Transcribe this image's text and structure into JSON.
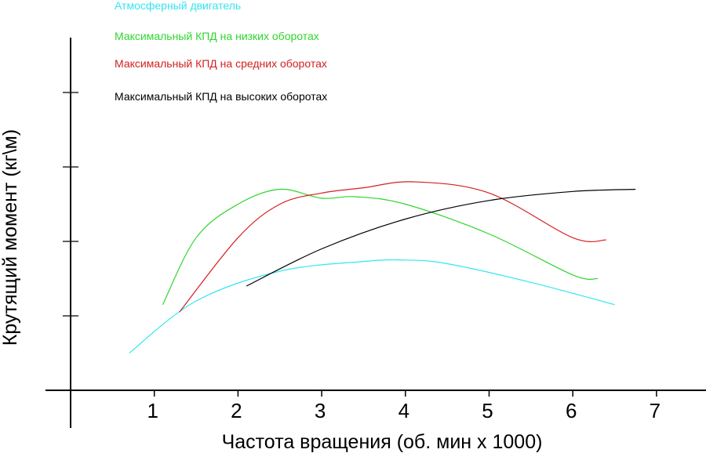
{
  "chart_data": {
    "type": "line",
    "title": "",
    "xlabel": "Частота вращения (об. мин х 1000)",
    "ylabel": "Крутящий момент (кг\\м)",
    "xlim": [
      0,
      7.5
    ],
    "ylim": [
      0,
      4.7
    ],
    "x_ticks": [
      "1",
      "2",
      "3",
      "4",
      "5",
      "6",
      "7"
    ],
    "y_ticks": [
      1,
      2,
      3,
      4
    ],
    "y_tick_labels_shown": false,
    "grid": false,
    "legend_position": "top-center",
    "series": [
      {
        "name": "Атмосферный двигатель",
        "color": "#33e6f0",
        "x": [
          0.7,
          1.5,
          2.5,
          3.5,
          4.0,
          4.5,
          5.5,
          6.5
        ],
        "y": [
          0.5,
          1.2,
          1.6,
          1.73,
          1.75,
          1.7,
          1.45,
          1.15
        ]
      },
      {
        "name": "Максимальный КПД на низких оборотах",
        "color": "#2ed62e",
        "x": [
          1.1,
          1.5,
          2.0,
          2.5,
          3.0,
          3.4,
          4.0,
          5.0,
          6.0,
          6.3
        ],
        "y": [
          1.15,
          2.05,
          2.5,
          2.7,
          2.58,
          2.6,
          2.5,
          2.1,
          1.55,
          1.5
        ]
      },
      {
        "name": "Максимальный КПД на средних оборотах",
        "color": "#d42020",
        "x": [
          1.3,
          2.0,
          2.5,
          3.0,
          3.5,
          4.1,
          5.0,
          6.0,
          6.4
        ],
        "y": [
          1.05,
          2.05,
          2.5,
          2.65,
          2.72,
          2.8,
          2.65,
          2.05,
          2.02
        ]
      },
      {
        "name": "Максимальный КПД на высоких оборотах",
        "color": "#000000",
        "x": [
          2.1,
          3.0,
          4.0,
          5.0,
          6.0,
          6.75
        ],
        "y": [
          1.4,
          1.9,
          2.3,
          2.55,
          2.67,
          2.7
        ]
      }
    ]
  }
}
